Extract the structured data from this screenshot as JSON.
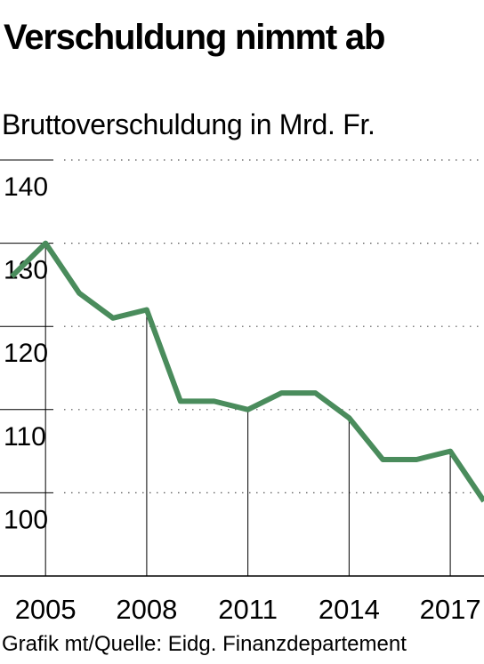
{
  "header": {
    "title": "Verschuldung nimmt ab",
    "subtitle": "Bruttoverschuldung in Mrd. Fr."
  },
  "footer": {
    "source": "Grafik mt/Quelle: Eidg. Finanzdepartement"
  },
  "colors": {
    "line": "#4a8c5c",
    "axis": "#000000",
    "grid": "#555555"
  },
  "chart_data": {
    "type": "line",
    "title": "Verschuldung nimmt ab",
    "subtitle": "Bruttoverschuldung in Mrd. Fr.",
    "xlabel": "",
    "ylabel": "",
    "x": [
      2004,
      2005,
      2006,
      2007,
      2008,
      2009,
      2010,
      2011,
      2012,
      2013,
      2014,
      2015,
      2016,
      2017,
      2018
    ],
    "series": [
      {
        "values": [
          126,
          130,
          124,
          121,
          122,
          111,
          111,
          110,
          112,
          112,
          109,
          104,
          104,
          105,
          99
        ]
      }
    ],
    "xlim": [
      2003.65,
      2018.0
    ],
    "ylim": [
      90,
      140
    ],
    "yticks": [
      100,
      110,
      120,
      130,
      140
    ],
    "ytick_labels": [
      "100",
      "110",
      "120",
      "130",
      "140"
    ],
    "xticks": [
      2005,
      2008,
      2011,
      2014,
      2017
    ],
    "xtick_labels": [
      "2005",
      "2008",
      "2011",
      "2014",
      "2017"
    ],
    "grid": "horizontal dotted",
    "legend": "none"
  }
}
